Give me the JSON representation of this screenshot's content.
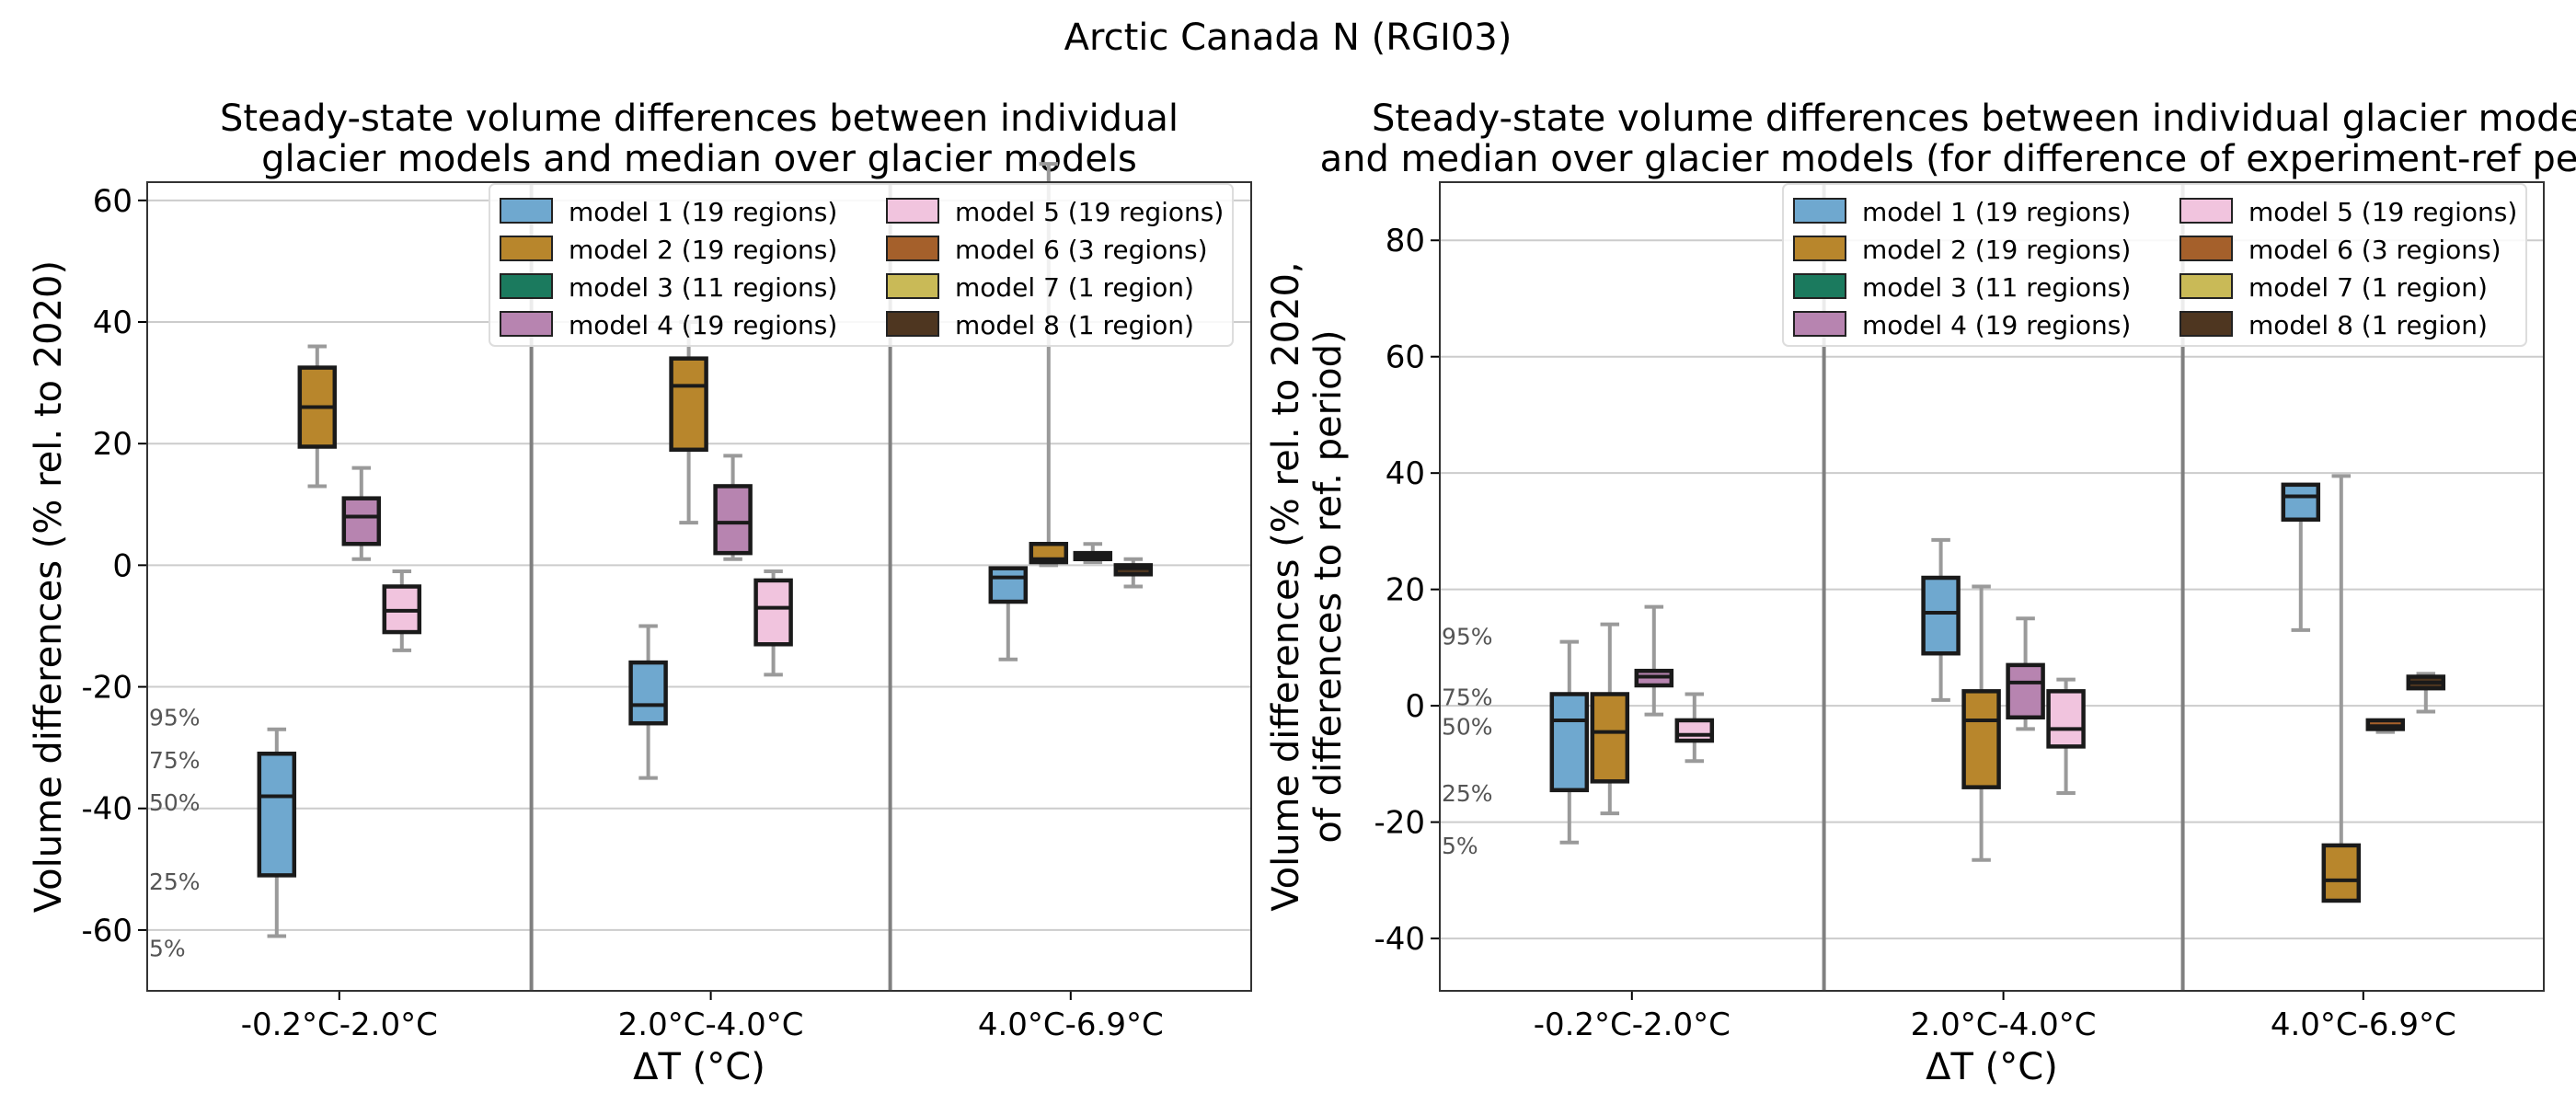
{
  "suptitle": "Arctic Canada N (RGI03)",
  "colors": {
    "model1": "#6fa8cf",
    "model2": "#b8862c",
    "model3": "#1b7a5e",
    "model4": "#b784b0",
    "model5": "#f1c4de",
    "model6": "#a5602b",
    "model7": "#c9ba57",
    "model8": "#4e3620",
    "whisker": "#9a9a9a",
    "box_edge": "#1a1a1a",
    "grid": "#cccccc",
    "separator": "#808080",
    "pct_text": "#555555"
  },
  "legend": [
    {
      "label": "model 1 (19 regions)",
      "color_key": "model1"
    },
    {
      "label": "model 2 (19 regions)",
      "color_key": "model2"
    },
    {
      "label": "model 3 (11 regions)",
      "color_key": "model3"
    },
    {
      "label": "model 4 (19 regions)",
      "color_key": "model4"
    },
    {
      "label": "model 5 (19 regions)",
      "color_key": "model5"
    },
    {
      "label": "model 6 (3 regions)",
      "color_key": "model6"
    },
    {
      "label": "model 7 (1 region)",
      "color_key": "model7"
    },
    {
      "label": "model 8 (1 region)",
      "color_key": "model8"
    }
  ],
  "chart_data": [
    {
      "type": "box",
      "title_lines": [
        "Steady-state volume differences between individual",
        "glacier models and median over glacier models"
      ],
      "xlabel": "ΔT (°C)",
      "ylabel_lines": [
        "Volume differences (% rel. to 2020)"
      ],
      "ylim": [
        -70,
        63
      ],
      "yticks": [
        -60,
        -40,
        -20,
        0,
        20,
        40,
        60
      ],
      "grid": true,
      "legend_position": "top-right",
      "categories": [
        "-0.2°C-2.0°C",
        "2.0°C-4.0°C",
        "4.0°C-6.9°C"
      ],
      "percentile_legend": [
        {
          "label": "95%",
          "value": -25
        },
        {
          "label": "75%",
          "value": -32
        },
        {
          "label": "50%",
          "value": -39
        },
        {
          "label": "25%",
          "value": -52
        },
        {
          "label": "5%",
          "value": -63
        }
      ],
      "boxes": [
        {
          "category": 0,
          "model": "model1",
          "p5": -61,
          "p25": -51,
          "median": -38,
          "p75": -31,
          "p95": -27
        },
        {
          "category": 0,
          "model": "model2",
          "p5": 13,
          "p25": 19.5,
          "median": 26,
          "p75": 32.5,
          "p95": 36
        },
        {
          "category": 0,
          "model": "model4",
          "p5": 1,
          "p25": 3.5,
          "median": 8,
          "p75": 11,
          "p95": 16
        },
        {
          "category": 0,
          "model": "model5",
          "p5": -14,
          "p25": -11,
          "median": -7.5,
          "p75": -3.5,
          "p95": -1
        },
        {
          "category": 1,
          "model": "model1",
          "p5": -35,
          "p25": -26,
          "median": -23,
          "p75": -16,
          "p95": -10
        },
        {
          "category": 1,
          "model": "model2",
          "p5": 7,
          "p25": 19,
          "median": 29.5,
          "p75": 34,
          "p95": 40
        },
        {
          "category": 1,
          "model": "model4",
          "p5": 1,
          "p25": 2,
          "median": 7,
          "p75": 13,
          "p95": 18
        },
        {
          "category": 1,
          "model": "model5",
          "p5": -18,
          "p25": -13,
          "median": -7,
          "p75": -2.5,
          "p95": -1
        },
        {
          "category": 2,
          "model": "model1",
          "p5": -15.5,
          "p25": -6,
          "median": -2,
          "p75": -0.5,
          "p95": -0.5
        },
        {
          "category": 2,
          "model": "model2",
          "p5": 0,
          "p25": 0.5,
          "median": 1,
          "p75": 3.5,
          "p95": 66
        },
        {
          "category": 2,
          "model": "model6",
          "p5": 0.5,
          "p25": 1,
          "median": 1.5,
          "p75": 2,
          "p95": 3.5
        },
        {
          "category": 2,
          "model": "model8",
          "p5": -3.5,
          "p25": -1.5,
          "median": -0.5,
          "p75": 0,
          "p95": 1
        }
      ]
    },
    {
      "type": "box",
      "title_lines": [
        "Steady-state volume differences between individual glacier models",
        "and median over glacier models (for difference of experiment-ref period)"
      ],
      "xlabel": "ΔT (°C)",
      "ylabel_lines": [
        "Volume differences (% rel. to 2020,",
        "of differences to ref. period)"
      ],
      "ylim": [
        -49,
        90
      ],
      "yticks": [
        -40,
        -20,
        0,
        20,
        40,
        60,
        80
      ],
      "grid": true,
      "legend_position": "top-right",
      "categories": [
        "-0.2°C-2.0°C",
        "2.0°C-4.0°C",
        "4.0°C-6.9°C"
      ],
      "percentile_legend": [
        {
          "label": "95%",
          "value": 12
        },
        {
          "label": "75%",
          "value": 1.5
        },
        {
          "label": "50%",
          "value": -3.5
        },
        {
          "label": "25%",
          "value": -15
        },
        {
          "label": "5%",
          "value": -24
        }
      ],
      "boxes": [
        {
          "category": 0,
          "model": "model1",
          "p5": -23.5,
          "p25": -14.5,
          "median": -2.5,
          "p75": 2,
          "p95": 11
        },
        {
          "category": 0,
          "model": "model2",
          "p5": -18.5,
          "p25": -13,
          "median": -4.5,
          "p75": 2,
          "p95": 14
        },
        {
          "category": 0,
          "model": "model4",
          "p5": -1.5,
          "p25": 3.5,
          "median": 5,
          "p75": 6,
          "p95": 17
        },
        {
          "category": 0,
          "model": "model5",
          "p5": -9.5,
          "p25": -6,
          "median": -5,
          "p75": -2.5,
          "p95": 2
        },
        {
          "category": 1,
          "model": "model1",
          "p5": 1,
          "p25": 9,
          "median": 16,
          "p75": 22,
          "p95": 28.5
        },
        {
          "category": 1,
          "model": "model2",
          "p5": -26.5,
          "p25": -14,
          "median": -2.5,
          "p75": 2.5,
          "p95": 20.5
        },
        {
          "category": 1,
          "model": "model4",
          "p5": -4,
          "p25": -2,
          "median": 4,
          "p75": 7,
          "p95": 15
        },
        {
          "category": 1,
          "model": "model5",
          "p5": -15,
          "p25": -7,
          "median": -4,
          "p75": 2.5,
          "p95": 4.5
        },
        {
          "category": 2,
          "model": "model1",
          "p5": 13,
          "p25": 32,
          "median": 36,
          "p75": 38,
          "p95": 38
        },
        {
          "category": 2,
          "model": "model2",
          "p5": -33.5,
          "p25": -33.5,
          "median": -30,
          "p75": -24,
          "p95": 39.5
        },
        {
          "category": 2,
          "model": "model6",
          "p5": -4.5,
          "p25": -4,
          "median": -3.5,
          "p75": -2.5,
          "p95": -2.5
        },
        {
          "category": 2,
          "model": "model8",
          "p5": -1,
          "p25": 3,
          "median": 4,
          "p75": 5,
          "p95": 5.5
        }
      ]
    }
  ]
}
